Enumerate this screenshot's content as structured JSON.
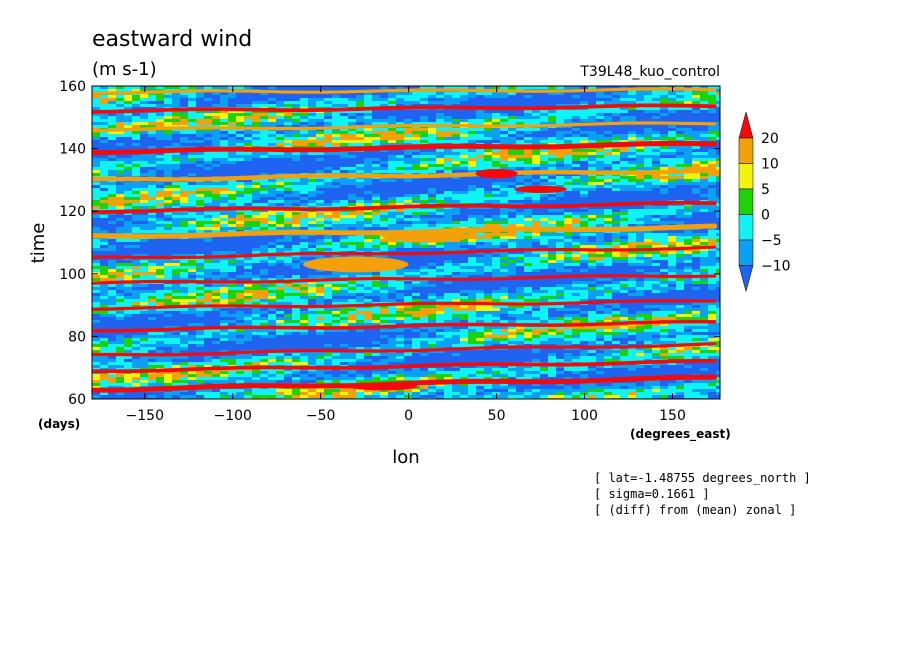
{
  "chart_data": {
    "type": "heatmap",
    "title": "eastward wind",
    "units": "(m s-1)",
    "experiment": "T39L48_kuo_control",
    "xlabel": "lon",
    "xunit": "(degrees_east)",
    "ylabel": "time",
    "yunit": "(days)",
    "xlim": [
      -180,
      177
    ],
    "ylim": [
      60,
      160
    ],
    "x_ticks": [
      -150,
      -100,
      -50,
      0,
      50,
      100,
      150
    ],
    "y_ticks": [
      60,
      80,
      100,
      120,
      140,
      160
    ],
    "colorbar": {
      "levels": [
        "20",
        "10",
        "5",
        "0",
        "-5",
        "-10"
      ],
      "bins": [
        {
          "range": "> 20",
          "color": "#f40a0a"
        },
        {
          "range": "10 to 20",
          "color": "#f4a00a"
        },
        {
          "range": "5 to 10",
          "color": "#f4f40a"
        },
        {
          "range": "0 to 5",
          "color": "#1ed20a"
        },
        {
          "range": "-5 to 0",
          "color": "#0ef4f4"
        },
        {
          "range": "-10 to -5",
          "color": "#0aa0f4"
        },
        {
          "range": "< -10",
          "color": "#1e64f0"
        }
      ]
    },
    "bands": [
      {
        "t0": 63,
        "slope": 0.09,
        "color": "#f40a0a",
        "width": 1.6
      },
      {
        "t0": 69,
        "slope": 0.07,
        "color": "#f40a0a",
        "width": 1.2
      },
      {
        "t0": 74,
        "slope": 0.08,
        "color": "#f40a0a",
        "width": 1.0
      },
      {
        "t0": 82,
        "slope": 0.06,
        "color": "#f40a0a",
        "width": 1.1
      },
      {
        "t0": 89,
        "slope": 0.055,
        "color": "#f40a0a",
        "width": 1.0
      },
      {
        "t0": 97,
        "slope": 0.06,
        "color": "#f40a0a",
        "width": 1.0
      },
      {
        "t0": 105,
        "slope": 0.08,
        "color": "#f40a0a",
        "width": 1.0
      },
      {
        "t0": 112,
        "slope": 0.07,
        "color": "#f4a00a",
        "width": 1.6
      },
      {
        "t0": 120,
        "slope": 0.06,
        "color": "#f40a0a",
        "width": 1.2
      },
      {
        "t0": 130,
        "slope": 0.07,
        "color": "#f4a00a",
        "width": 1.4
      },
      {
        "t0": 139,
        "slope": 0.06,
        "color": "#f40a0a",
        "width": 1.6
      },
      {
        "t0": 146,
        "slope": 0.05,
        "color": "#f4a00a",
        "width": 1.0
      },
      {
        "t0": 152,
        "slope": 0.04,
        "color": "#f40a0a",
        "width": 1.2
      },
      {
        "t0": 158,
        "slope": 0.02,
        "color": "#f4a00a",
        "width": 1.0
      }
    ],
    "blobs": [
      {
        "lon": 50,
        "time": 132,
        "color": "#f40a0a",
        "rlon": 12,
        "rtime": 1.5
      },
      {
        "lon": 75,
        "time": 127,
        "color": "#f40a0a",
        "rlon": 15,
        "rtime": 1.2
      },
      {
        "lon": -15,
        "time": 64,
        "color": "#f40a0a",
        "rlon": 20,
        "rtime": 1.2
      },
      {
        "lon": -30,
        "time": 103,
        "color": "#f4a00a",
        "rlon": 30,
        "rtime": 2.5
      },
      {
        "lon": 10,
        "time": 112,
        "color": "#f4a00a",
        "rlon": 25,
        "rtime": 2.0
      }
    ]
  },
  "annotations": [
    "[ lat=-1.48755 degrees_north ]",
    "[ sigma=0.1661 ]",
    "[ (diff) from (mean) zonal ]"
  ]
}
